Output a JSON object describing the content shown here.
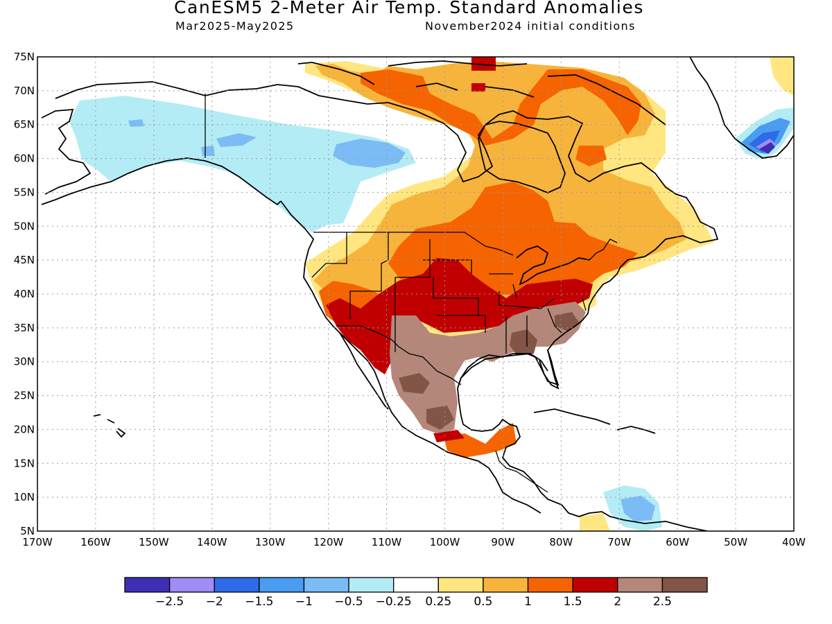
{
  "title": "CanESM5 2-Meter Air Temp. Standard Anomalies",
  "subtitle_left": "Mar2025-May2025",
  "subtitle_right": "November2024 initial conditions",
  "map": {
    "lat_labels": [
      "75N",
      "70N",
      "65N",
      "60N",
      "55N",
      "50N",
      "45N",
      "40N",
      "35N",
      "30N",
      "25N",
      "20N",
      "15N",
      "10N",
      "5N"
    ],
    "lon_labels": [
      "170W",
      "160W",
      "150W",
      "140W",
      "130W",
      "120W",
      "110W",
      "100W",
      "90W",
      "80W",
      "70W",
      "60W",
      "50W",
      "40W"
    ],
    "lat_range": [
      5,
      75
    ],
    "lon_range": [
      -170,
      -40
    ],
    "grid": "dotted"
  },
  "colorbar": {
    "colors": [
      "#3f2fb4",
      "#a08cf5",
      "#2e6be6",
      "#4a9cf0",
      "#7cbcf5",
      "#b4ecf5",
      "#ffffff",
      "#ffe680",
      "#f7b43c",
      "#f56400",
      "#c00000",
      "#b4877a",
      "#825546"
    ],
    "labels": [
      "-2.5",
      "-2",
      "-1.5",
      "-1",
      "-0.5",
      "-0.25",
      "0.25",
      "0.5",
      "1",
      "1.5",
      "2",
      "2.5"
    ]
  },
  "regions": {
    "cool_alaska_yukon": "anomaly -0.5 to -0.25",
    "warm_central_us": "anomaly 1.5 to 2",
    "very_warm_southern_us_mexico": "anomaly 2 to 2.5+",
    "cold_south_greenland": "anomaly -2.5 to -1"
  }
}
